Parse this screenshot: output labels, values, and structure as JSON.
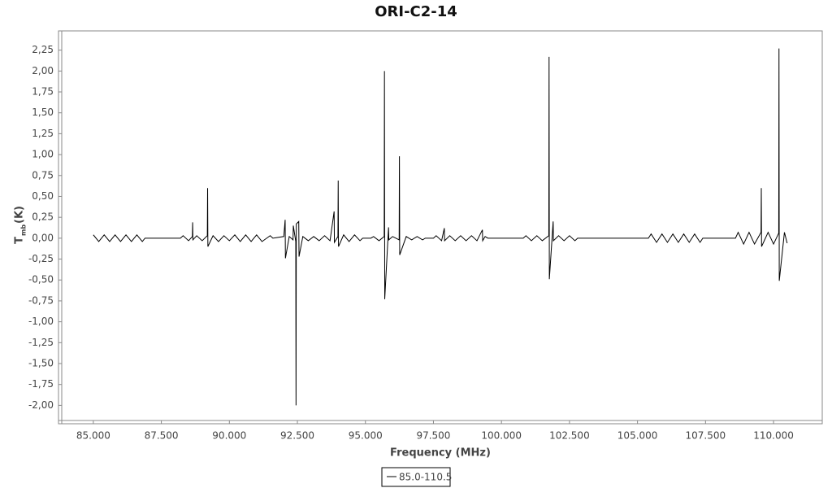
{
  "chart_data": {
    "type": "line",
    "title": "ORI-C2-14",
    "xlabel": "Frequency (MHz)",
    "ylabel": "T",
    "ylabel_sub": "mb",
    "ylabel_unit": "(K)",
    "xlim": [
      83.72,
      111.79
    ],
    "ylim": [
      -2.22,
      2.48
    ],
    "xticks": [
      {
        "value": 85,
        "label": "85.000"
      },
      {
        "value": 87.5,
        "label": "87.500"
      },
      {
        "value": 90,
        "label": "90.000"
      },
      {
        "value": 92.5,
        "label": "92.500"
      },
      {
        "value": 95,
        "label": "95.000"
      },
      {
        "value": 97.5,
        "label": "97.500"
      },
      {
        "value": 100,
        "label": "100.000"
      },
      {
        "value": 102.5,
        "label": "102.500"
      },
      {
        "value": 105,
        "label": "105.000"
      },
      {
        "value": 107.5,
        "label": "107.500"
      },
      {
        "value": 110,
        "label": "110.000"
      }
    ],
    "yticks": [
      {
        "value": 2.25,
        "label": "2,25"
      },
      {
        "value": 2,
        "label": "2,00"
      },
      {
        "value": 1.75,
        "label": "1,75"
      },
      {
        "value": 1.5,
        "label": "1,50"
      },
      {
        "value": 1.25,
        "label": "1,25"
      },
      {
        "value": 1,
        "label": "1,00"
      },
      {
        "value": 0.75,
        "label": "0,75"
      },
      {
        "value": 0.5,
        "label": "0,50"
      },
      {
        "value": 0.25,
        "label": "0,25"
      },
      {
        "value": 0,
        "label": "0,00"
      },
      {
        "value": -0.25,
        "label": "-0,25"
      },
      {
        "value": -0.5,
        "label": "-0,50"
      },
      {
        "value": -0.75,
        "label": "-0,75"
      },
      {
        "value": -1,
        "label": "-1,00"
      },
      {
        "value": -1.25,
        "label": "-1,25"
      },
      {
        "value": -1.5,
        "label": "-1,50"
      },
      {
        "value": -1.75,
        "label": "-1,75"
      },
      {
        "value": -2,
        "label": "-2,00"
      }
    ],
    "series": [
      {
        "name": "85.0-110.5",
        "color": "#000000",
        "x": [
          85.0,
          85.2,
          85.4,
          85.6,
          85.8,
          86.0,
          86.2,
          86.4,
          86.6,
          86.8,
          86.9,
          88.2,
          88.3,
          88.5,
          88.64,
          88.65,
          88.66,
          88.8,
          89.0,
          89.19,
          89.2,
          89.21,
          89.4,
          89.6,
          89.8,
          90.0,
          90.2,
          90.4,
          90.6,
          90.8,
          91.0,
          91.2,
          91.5,
          91.6,
          92.0,
          92.05,
          92.06,
          92.2,
          92.34,
          92.35,
          92.44,
          92.45,
          92.46,
          92.55,
          92.56,
          92.7,
          92.9,
          93.1,
          93.3,
          93.5,
          93.7,
          93.85,
          93.86,
          93.99,
          94.0,
          94.01,
          94.2,
          94.4,
          94.6,
          94.8,
          94.9,
          95.2,
          95.3,
          95.5,
          95.69,
          95.7,
          95.71,
          95.85,
          95.86,
          96.0,
          96.24,
          96.25,
          96.26,
          96.5,
          96.7,
          96.9,
          97.1,
          97.2,
          97.5,
          97.6,
          97.8,
          97.9,
          97.91,
          98.1,
          98.3,
          98.5,
          98.7,
          98.9,
          99.1,
          99.3,
          99.31,
          99.4,
          99.5,
          100.8,
          100.9,
          101.1,
          101.3,
          101.5,
          101.74,
          101.75,
          101.76,
          101.9,
          101.91,
          102.1,
          102.3,
          102.5,
          102.7,
          102.8,
          105.4,
          105.5,
          105.7,
          105.9,
          106.1,
          106.3,
          106.5,
          106.7,
          106.9,
          107.1,
          107.3,
          107.4,
          108.6,
          108.7,
          108.9,
          109.1,
          109.3,
          109.54,
          109.55,
          109.56,
          109.8,
          110.0,
          110.19,
          110.2,
          110.21,
          110.4,
          110.5
        ],
        "values": [
          0.04,
          -0.04,
          0.04,
          -0.04,
          0.04,
          -0.04,
          0.04,
          -0.04,
          0.04,
          -0.04,
          0,
          0,
          0.03,
          -0.03,
          0.02,
          0.19,
          -0.02,
          0.03,
          -0.03,
          0.03,
          0.6,
          -0.1,
          0.03,
          -0.04,
          0.03,
          -0.03,
          0.04,
          -0.04,
          0.04,
          -0.04,
          0.04,
          -0.04,
          0.03,
          0,
          0.02,
          0.22,
          -0.24,
          0.02,
          -0.02,
          0.15,
          -0.04,
          -2.0,
          0.17,
          0.2,
          -0.22,
          0.02,
          -0.03,
          0.02,
          -0.03,
          0.03,
          -0.03,
          0.32,
          -0.05,
          0.02,
          0.69,
          -0.1,
          0.04,
          -0.04,
          0.04,
          -0.03,
          0,
          0,
          0.02,
          -0.03,
          0.02,
          2.0,
          -0.73,
          0.13,
          -0.02,
          0.02,
          -0.02,
          0.98,
          -0.2,
          0.02,
          -0.02,
          0.02,
          -0.02,
          0,
          0,
          0.03,
          -0.03,
          0.12,
          -0.03,
          0.03,
          -0.03,
          0.03,
          -0.03,
          0.03,
          -0.03,
          0.1,
          -0.03,
          0.02,
          0,
          0,
          0.03,
          -0.03,
          0.03,
          -0.03,
          0.03,
          2.17,
          -0.49,
          0.2,
          -0.03,
          0.03,
          -0.03,
          0.03,
          -0.03,
          0,
          0,
          0.05,
          -0.05,
          0.05,
          -0.05,
          0.05,
          -0.05,
          0.05,
          -0.05,
          0.05,
          -0.05,
          0,
          0,
          0.07,
          -0.07,
          0.07,
          -0.07,
          0.07,
          0.6,
          -0.1,
          0.07,
          -0.07,
          0.06,
          2.27,
          -0.51,
          0.07,
          -0.06
        ]
      }
    ]
  }
}
